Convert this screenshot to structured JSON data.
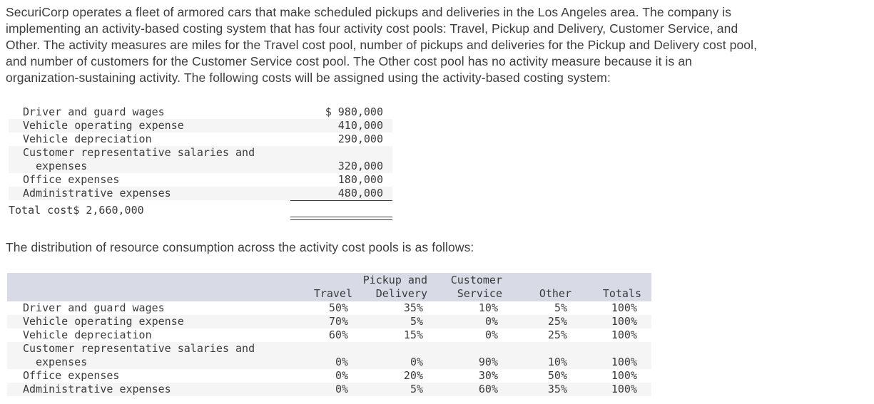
{
  "intro": {
    "lines": [
      "SecuriCorp operates a fleet of armored cars that make scheduled pickups and deliveries in the Los Angeles area. The company is",
      "implementing an activity-based costing system that has four activity cost pools: Travel, Pickup and Delivery, Customer Service, and",
      "Other. The activity measures are miles for the Travel cost pool, number of pickups and deliveries for the Pickup and Delivery cost pool,",
      "and number of customers for the Customer Service cost pool. The Other cost pool has no activity measure because it is an",
      "organization-sustaining activity. The following costs will be assigned using the activity-based costing system:"
    ]
  },
  "cost_table": {
    "rows": [
      {
        "label": "Driver and guard wages",
        "amount": "$ 980,000"
      },
      {
        "label": "Vehicle operating expense",
        "amount": "410,000"
      },
      {
        "label": "Vehicle depreciation",
        "amount": "290,000"
      },
      {
        "label_line1": "Customer representative salaries and",
        "label_line2": "expenses",
        "amount": "320,000"
      },
      {
        "label": "Office expenses",
        "amount": "180,000"
      },
      {
        "label": "Administrative expenses",
        "amount": "480,000"
      }
    ],
    "total_label": "Total cost",
    "total_amount": "$ 2,660,000"
  },
  "distribution_intro": "The distribution of resource consumption across the activity cost pools is as follows:",
  "distribution_table": {
    "headers": {
      "pickup_line1": "Pickup and",
      "customer_line1": "Customer",
      "travel": "Travel",
      "pickup_line2": "Delivery",
      "customer_line2": "Service",
      "other": "Other",
      "totals": "Totals"
    },
    "rows": [
      {
        "label": "Driver and guard wages",
        "travel": "50%",
        "pickup": "35%",
        "customer": "10%",
        "other": "5%",
        "totals": "100%"
      },
      {
        "label": "Vehicle operating expense",
        "travel": "70%",
        "pickup": "5%",
        "customer": "0%",
        "other": "25%",
        "totals": "100%"
      },
      {
        "label": "Vehicle depreciation",
        "travel": "60%",
        "pickup": "15%",
        "customer": "0%",
        "other": "25%",
        "totals": "100%"
      },
      {
        "label_line1": "Customer representative salaries and",
        "label_line2": "expenses",
        "travel": "0%",
        "pickup": "0%",
        "customer": "90%",
        "other": "10%",
        "totals": "100%"
      },
      {
        "label": "Office expenses",
        "travel": "0%",
        "pickup": "20%",
        "customer": "30%",
        "other": "50%",
        "totals": "100%"
      },
      {
        "label": "Administrative expenses",
        "travel": "0%",
        "pickup": "5%",
        "customer": "60%",
        "other": "35%",
        "totals": "100%"
      }
    ]
  },
  "colors": {
    "header_bg": "#d8dbe6",
    "stripe_bg": "#f5f5f6",
    "text": "#3b3b3b"
  }
}
